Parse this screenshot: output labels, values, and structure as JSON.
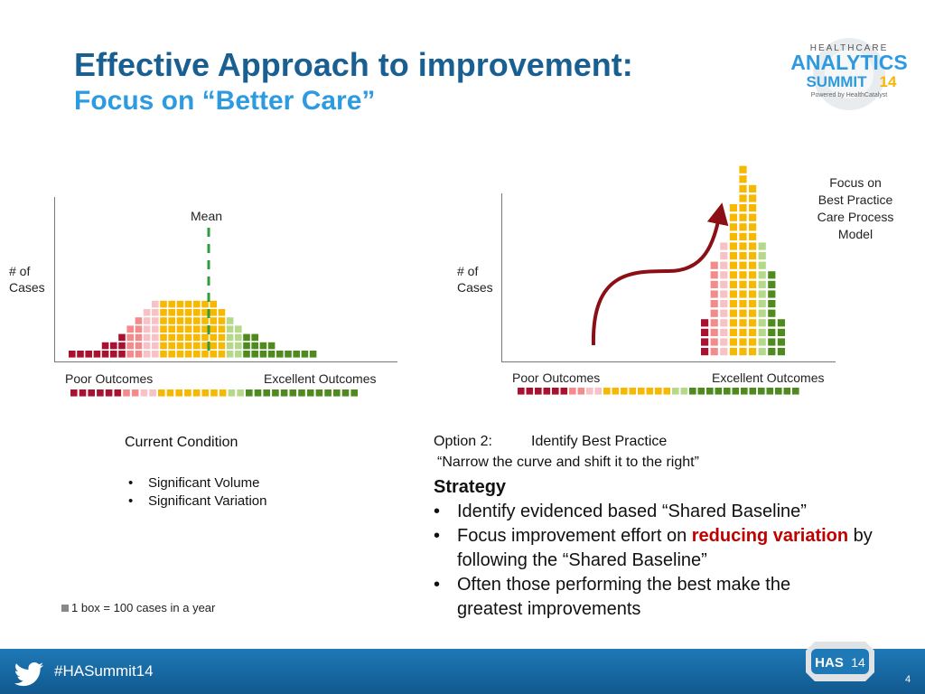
{
  "title": {
    "line1": "Effective Approach to improvement:",
    "line2": "Focus on “Better Care”"
  },
  "logo": {
    "top": "HEALTHCARE",
    "main": "ANALYTICS",
    "summit": "SUMMIT",
    "year": "14",
    "tag": "Powered by HealthCatalyst"
  },
  "left_chart": {
    "mean_label": "Mean",
    "y_label_1": "# of",
    "y_label_2": "Cases",
    "x_left": "Poor Outcomes",
    "x_right": "Excellent Outcomes",
    "column_heights": [
      1,
      1,
      1,
      1,
      2,
      2,
      3,
      4,
      5,
      6,
      7,
      7,
      7,
      7,
      7,
      7,
      7,
      7,
      6,
      5,
      4,
      3,
      3,
      2,
      2,
      1,
      1,
      1,
      1,
      1
    ],
    "mean_column": 15
  },
  "right_chart": {
    "y_label_1": "# of",
    "y_label_2": "Cases",
    "x_left": "Poor Outcomes",
    "x_right": "Excellent Outcomes",
    "callout": [
      "Focus on",
      "Best Practice",
      "Care Process",
      "Model"
    ],
    "column_heights": [
      4,
      10,
      12,
      16,
      20,
      18,
      12,
      9,
      4
    ]
  },
  "colors": {
    "red": "#a8112f",
    "pink_dark": "#f28c8c",
    "pink_light": "#f7c1c6",
    "yellow": "#f6b800",
    "green_light": "#b5d88a",
    "green_dark": "#4e8a1e",
    "title_dark": "#1a5f92",
    "title_light": "#2e9be0"
  },
  "current_condition": {
    "heading": "Current Condition",
    "bullets": [
      "Significant Volume",
      "Significant Variation"
    ]
  },
  "legend_note": "1 box = 100 cases in a year",
  "option": {
    "heading": "Option 2:",
    "heading_value": "Identify Best Practice",
    "subtitle": "“Narrow the curve and shift it to the right”",
    "strategy": "Strategy",
    "b1": "Identify evidenced based “Shared Baseline”",
    "b2_pre": "Focus improvement effort on ",
    "b2_red": "reducing variation",
    "b2_post": " by following the “Shared Baseline”",
    "b3": "Often those performing the best make the greatest improvements"
  },
  "footer": {
    "hashtag": "#HASummit14",
    "badge": "HAS",
    "badge_year": "14",
    "page": "4"
  }
}
